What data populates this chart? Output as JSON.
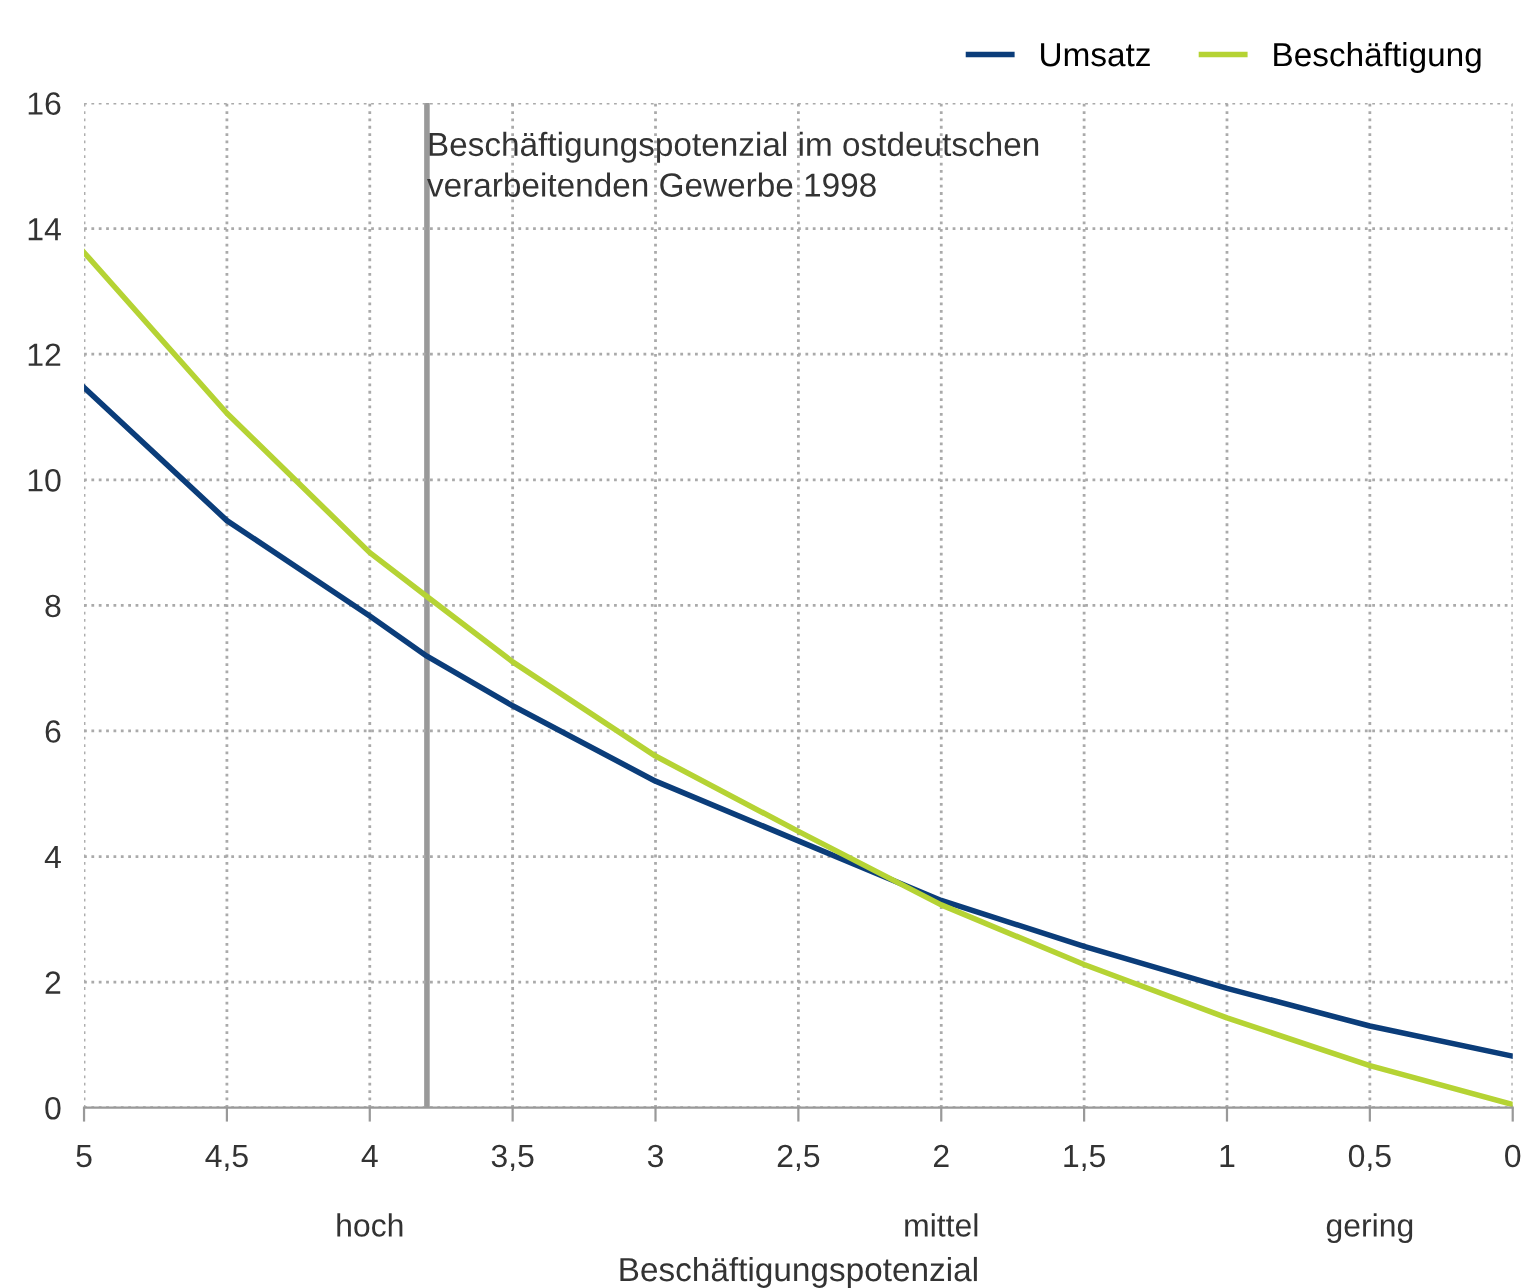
{
  "chart_data": {
    "type": "line",
    "xlabel": "Beschäftigungspotenzial",
    "xlim": [
      5,
      0
    ],
    "ylim": [
      0,
      16
    ],
    "xticks": [
      5,
      {
        "value": 4.5,
        "label": "4,5"
      },
      4,
      {
        "value": 3.5,
        "label": "3,5"
      },
      3,
      {
        "value": 2.5,
        "label": "2,5"
      },
      2,
      {
        "value": 1.5,
        "label": "1,5"
      },
      1,
      {
        "value": 0.5,
        "label": "0,5"
      },
      0
    ],
    "annotations": [
      "hoch",
      "mittel",
      "gering"
    ],
    "yticks": [
      0,
      2,
      4,
      6,
      8,
      10,
      12,
      14,
      16
    ],
    "x": [
      5,
      4.5,
      4,
      3.8,
      3.5,
      3,
      2.5,
      2,
      1.5,
      1,
      0.5,
      0
    ],
    "series": [
      {
        "name": "Umsatz",
        "color": "#0b3d7a",
        "values": [
          11.47,
          9.35,
          7.83,
          7.19,
          6.4,
          5.2,
          4.25,
          3.3,
          2.57,
          1.9,
          1.3,
          0.82
        ]
      },
      {
        "name": "Beschäftigung",
        "color": "#b5d334",
        "values": [
          13.62,
          11.06,
          8.84,
          8.14,
          7.1,
          5.6,
          4.4,
          3.23,
          2.28,
          1.43,
          0.67,
          0.05
        ]
      }
    ],
    "ref_lines": [
      {
        "axis": "x",
        "value": 3.8,
        "label": "Beschäftigungspotenzial im ostdeutschen\nverarbeitenden Gewerbe 1998",
        "color": "#999999"
      }
    ],
    "grid": true,
    "legend": "top right",
    "marker": "none",
    "line_style": "solid"
  }
}
